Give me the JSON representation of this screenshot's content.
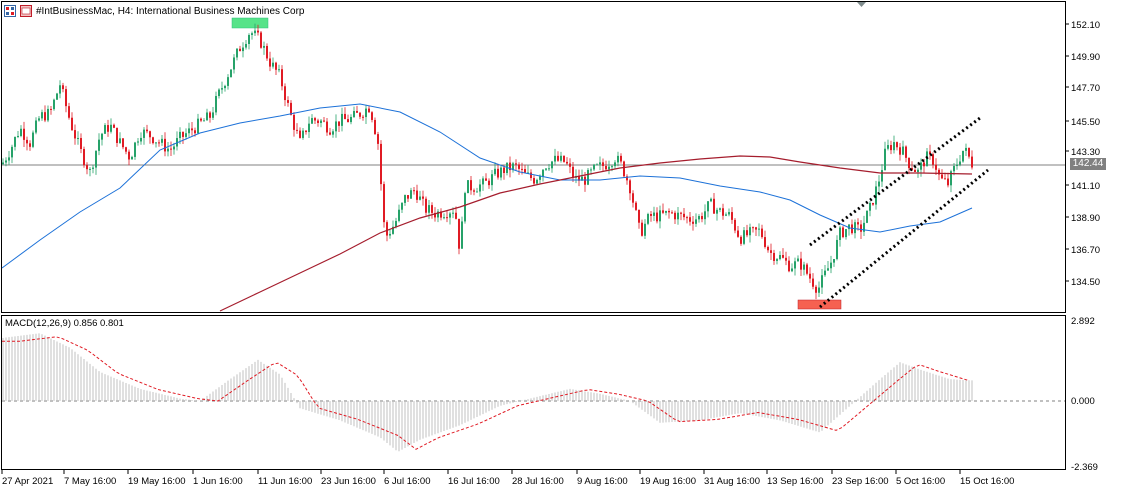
{
  "window": {
    "symbol_title": "#IntBusinessMac, H4:  International Business Machines Corp"
  },
  "price_axis": {
    "ticks": [
      "152.10",
      "149.90",
      "147.70",
      "145.50",
      "143.30",
      "141.10",
      "138.90",
      "136.70",
      "134.50"
    ],
    "current_price": "142.44"
  },
  "indicator": {
    "label": "MACD(12,26,9) 0.856 0.801",
    "ticks": [
      "2.892",
      "0.000",
      "-2.369"
    ]
  },
  "time_axis": {
    "labels": [
      "27 Apr 2021",
      "7 May 16:00",
      "19 May 16:00",
      "1 Jun 16:00",
      "11 Jun 16:00",
      "23 Jun 16:00",
      "6 Jul 16:00",
      "16 Jul 16:00",
      "28 Jul 16:00",
      "9 Aug 16:00",
      "19 Aug 16:00",
      "31 Aug 16:00",
      "13 Sep 16:00",
      "23 Sep 16:00",
      "5 Oct 16:00",
      "15 Oct 16:00"
    ]
  },
  "colors": {
    "bull": "#26a269",
    "bear": "#e01b24",
    "ma_fast": "#1c71d8",
    "ma_slow": "#a51d2d",
    "macd_hist": "#c0c0c0",
    "macd_signal": "#e01b24",
    "channel": "#000000",
    "high_marker": "#57e389",
    "low_marker": "#f66151"
  }
}
